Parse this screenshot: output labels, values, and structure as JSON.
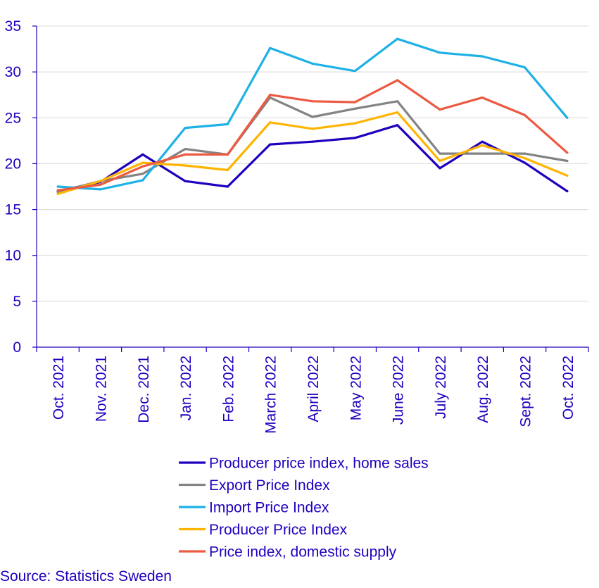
{
  "chart_data": {
    "type": "line",
    "title": "",
    "xlabel": "",
    "ylabel": "",
    "ylim": [
      0,
      35
    ],
    "yticks": [
      0,
      5,
      10,
      15,
      20,
      25,
      30,
      35
    ],
    "grid": true,
    "legend_position": "bottom",
    "categories": [
      "Oct. 2021",
      "Nov. 2021",
      "Dec. 2021",
      "Jan. 2022",
      "Feb. 2022",
      "March 2022",
      "April 2022",
      "May 2022",
      "June 2022",
      "July 2022",
      "Aug. 2022",
      "Sept. 2022",
      "Oct. 2022"
    ],
    "series": [
      {
        "name": "Producer price index, home sales",
        "color": "#1e00be",
        "values": [
          17.0,
          18.0,
          21.0,
          18.1,
          17.5,
          22.1,
          22.4,
          22.8,
          24.2,
          19.5,
          22.4,
          20.1,
          17.0
        ]
      },
      {
        "name": "Export Price Index",
        "color": "#838383",
        "values": [
          16.9,
          18.1,
          18.9,
          21.6,
          21.0,
          27.2,
          25.1,
          26.0,
          26.8,
          21.1,
          21.1,
          21.1,
          20.3
        ]
      },
      {
        "name": "Import Price Index",
        "color": "#1eb1e6",
        "values": [
          17.5,
          17.2,
          18.2,
          23.9,
          24.3,
          32.6,
          30.9,
          30.1,
          33.6,
          32.1,
          31.7,
          30.5,
          25.0
        ]
      },
      {
        "name": "Producer Price Index",
        "color": "#ffb400",
        "values": [
          16.7,
          18.1,
          20.1,
          19.8,
          19.3,
          24.5,
          23.8,
          24.4,
          25.6,
          20.3,
          22.0,
          20.6,
          18.7
        ]
      },
      {
        "name": "Price index, domestic supply",
        "color": "#eb5a41",
        "values": [
          17.1,
          17.7,
          19.7,
          21.0,
          21.0,
          27.5,
          26.8,
          26.7,
          29.1,
          25.9,
          27.2,
          25.3,
          21.2
        ]
      }
    ]
  },
  "source": "Source: Statistics Sweden"
}
